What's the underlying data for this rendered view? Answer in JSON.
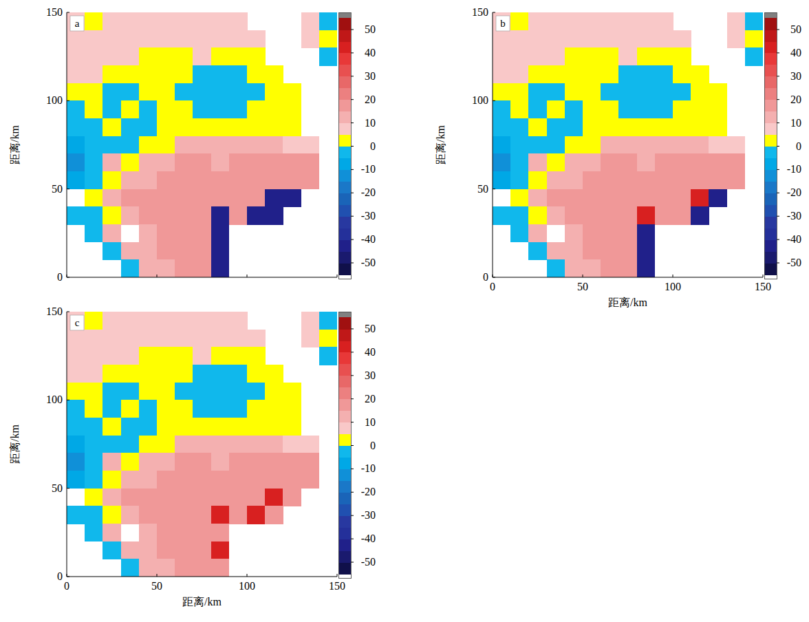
{
  "chart_data": [
    {
      "type": "heatmap",
      "label": "a",
      "y_label": "距离/km",
      "x": [
        5,
        15,
        25,
        35,
        45,
        55,
        65,
        75,
        85,
        95,
        105,
        115,
        125,
        135,
        145
      ],
      "y": [
        145,
        135,
        125,
        115,
        105,
        95,
        85,
        75,
        65,
        55,
        45,
        35,
        25,
        15,
        5
      ],
      "values": [
        [
          8,
          2,
          8,
          8,
          8,
          8,
          8,
          8,
          8,
          8,
          null,
          null,
          null,
          8,
          -5
        ],
        [
          8,
          8,
          8,
          8,
          8,
          8,
          8,
          8,
          8,
          8,
          8,
          null,
          null,
          8,
          2
        ],
        [
          8,
          8,
          8,
          8,
          2,
          2,
          2,
          8,
          2,
          2,
          2,
          null,
          null,
          null,
          -5
        ],
        [
          8,
          8,
          2,
          2,
          2,
          2,
          2,
          -5,
          -5,
          -5,
          2,
          2,
          null,
          null,
          null
        ],
        [
          2,
          2,
          -5,
          -5,
          2,
          2,
          -5,
          -5,
          -5,
          -5,
          -5,
          2,
          2,
          null,
          null
        ],
        [
          -5,
          2,
          -5,
          2,
          -5,
          2,
          2,
          -5,
          -5,
          -5,
          2,
          2,
          2,
          null,
          null
        ],
        [
          -5,
          -5,
          2,
          -5,
          -5,
          2,
          2,
          2,
          2,
          2,
          2,
          2,
          2,
          null,
          null
        ],
        [
          -10,
          -5,
          -5,
          -5,
          2,
          2,
          12,
          12,
          12,
          12,
          12,
          12,
          8,
          8,
          null
        ],
        [
          -15,
          -5,
          12,
          2,
          12,
          12,
          15,
          15,
          12,
          15,
          15,
          15,
          15,
          15,
          null
        ],
        [
          -10,
          -5,
          2,
          12,
          12,
          15,
          15,
          15,
          15,
          15,
          15,
          15,
          15,
          15,
          null
        ],
        [
          null,
          2,
          12,
          15,
          15,
          15,
          15,
          15,
          15,
          15,
          15,
          -45,
          -45,
          null,
          null
        ],
        [
          -5,
          -5,
          2,
          12,
          15,
          15,
          15,
          15,
          -45,
          15,
          -45,
          -45,
          null,
          null,
          null
        ],
        [
          null,
          -5,
          12,
          null,
          12,
          15,
          15,
          15,
          -45,
          null,
          null,
          null,
          null,
          null,
          null
        ],
        [
          null,
          null,
          -5,
          12,
          12,
          15,
          15,
          15,
          -45,
          null,
          null,
          null,
          null,
          null,
          null
        ],
        [
          null,
          null,
          null,
          -5,
          12,
          12,
          15,
          15,
          -45,
          null,
          null,
          null,
          null,
          null,
          null
        ]
      ],
      "xlim": [
        0,
        150
      ],
      "ylim": [
        0,
        150
      ],
      "xticks": [
        0,
        50,
        100,
        150
      ],
      "yticks": [
        0,
        50,
        100,
        150
      ],
      "tick_labels": "y",
      "colorbar": {
        "range": [
          -55,
          55
        ],
        "ticks": [
          -50,
          -40,
          -30,
          -20,
          -10,
          0,
          10,
          20,
          30,
          40,
          50
        ]
      }
    },
    {
      "type": "heatmap",
      "label": "b",
      "x_label": "距离/km",
      "y_label": "距离/km",
      "x": [
        5,
        15,
        25,
        35,
        45,
        55,
        65,
        75,
        85,
        95,
        105,
        115,
        125,
        135,
        145
      ],
      "y": [
        145,
        135,
        125,
        115,
        105,
        95,
        85,
        75,
        65,
        55,
        45,
        35,
        25,
        15,
        5
      ],
      "values": [
        [
          8,
          2,
          8,
          8,
          8,
          8,
          8,
          8,
          8,
          8,
          null,
          null,
          null,
          8,
          -5
        ],
        [
          8,
          8,
          8,
          8,
          8,
          8,
          8,
          8,
          8,
          8,
          8,
          null,
          null,
          8,
          2
        ],
        [
          8,
          8,
          8,
          8,
          2,
          2,
          2,
          8,
          2,
          2,
          2,
          null,
          null,
          null,
          -5
        ],
        [
          8,
          8,
          2,
          2,
          2,
          2,
          2,
          -5,
          -5,
          -5,
          2,
          2,
          null,
          null,
          null
        ],
        [
          2,
          2,
          -5,
          -5,
          2,
          2,
          -5,
          -5,
          -5,
          -5,
          -5,
          2,
          2,
          null,
          null
        ],
        [
          -5,
          2,
          -5,
          2,
          -5,
          2,
          2,
          -5,
          -5,
          -5,
          2,
          2,
          2,
          null,
          null
        ],
        [
          -5,
          -5,
          2,
          -5,
          -5,
          2,
          2,
          2,
          2,
          2,
          2,
          2,
          2,
          null,
          null
        ],
        [
          -10,
          -5,
          -5,
          -5,
          2,
          2,
          12,
          12,
          12,
          12,
          12,
          12,
          8,
          8,
          null
        ],
        [
          -15,
          -5,
          12,
          2,
          12,
          12,
          15,
          15,
          12,
          15,
          15,
          15,
          15,
          15,
          null
        ],
        [
          -10,
          -5,
          2,
          12,
          12,
          15,
          15,
          15,
          15,
          15,
          15,
          15,
          15,
          15,
          null
        ],
        [
          null,
          2,
          12,
          15,
          15,
          15,
          15,
          15,
          15,
          15,
          15,
          40,
          -45,
          null,
          null
        ],
        [
          -5,
          -5,
          2,
          12,
          15,
          15,
          15,
          15,
          40,
          15,
          20,
          -45,
          null,
          null,
          null
        ],
        [
          null,
          -5,
          12,
          null,
          12,
          15,
          15,
          15,
          -45,
          null,
          null,
          null,
          null,
          null,
          null
        ],
        [
          null,
          null,
          -5,
          12,
          12,
          15,
          15,
          15,
          -45,
          null,
          null,
          null,
          null,
          null,
          null
        ],
        [
          null,
          null,
          null,
          -5,
          12,
          12,
          15,
          15,
          -45,
          null,
          null,
          null,
          null,
          null,
          null
        ]
      ],
      "xlim": [
        0,
        150
      ],
      "ylim": [
        0,
        150
      ],
      "xticks": [
        0,
        50,
        100,
        150
      ],
      "yticks": [
        0,
        50,
        100,
        150
      ],
      "tick_labels": true,
      "colorbar": {
        "range": [
          -55,
          55
        ],
        "ticks": [
          -50,
          -40,
          -30,
          -20,
          -10,
          0,
          10,
          20,
          30,
          40,
          50
        ]
      }
    },
    {
      "type": "heatmap",
      "label": "c",
      "x_label": "距离/km",
      "y_label": "距离/km",
      "x": [
        5,
        15,
        25,
        35,
        45,
        55,
        65,
        75,
        85,
        95,
        105,
        115,
        125,
        135,
        145
      ],
      "y": [
        145,
        135,
        125,
        115,
        105,
        95,
        85,
        75,
        65,
        55,
        45,
        35,
        25,
        15,
        5
      ],
      "values": [
        [
          8,
          2,
          8,
          8,
          8,
          8,
          8,
          8,
          8,
          8,
          null,
          null,
          null,
          8,
          -5
        ],
        [
          8,
          8,
          8,
          8,
          8,
          8,
          8,
          8,
          8,
          8,
          8,
          null,
          null,
          8,
          2
        ],
        [
          8,
          8,
          8,
          8,
          2,
          2,
          2,
          8,
          2,
          2,
          2,
          null,
          null,
          null,
          -5
        ],
        [
          8,
          8,
          2,
          2,
          2,
          2,
          2,
          -5,
          -5,
          -5,
          2,
          2,
          null,
          null,
          null
        ],
        [
          2,
          2,
          -5,
          -5,
          2,
          2,
          -5,
          -5,
          -5,
          -5,
          -5,
          2,
          2,
          null,
          null
        ],
        [
          -5,
          2,
          -5,
          2,
          -5,
          2,
          2,
          -5,
          -5,
          -5,
          2,
          2,
          2,
          null,
          null
        ],
        [
          -5,
          -5,
          2,
          -5,
          -5,
          2,
          2,
          2,
          2,
          2,
          2,
          2,
          2,
          null,
          null
        ],
        [
          -10,
          -5,
          -5,
          -5,
          2,
          2,
          12,
          12,
          12,
          12,
          12,
          12,
          8,
          8,
          null
        ],
        [
          -15,
          -5,
          12,
          2,
          12,
          12,
          15,
          15,
          12,
          15,
          15,
          15,
          15,
          15,
          null
        ],
        [
          -10,
          -5,
          2,
          12,
          12,
          15,
          15,
          15,
          15,
          15,
          15,
          15,
          15,
          15,
          null
        ],
        [
          null,
          2,
          12,
          15,
          15,
          15,
          15,
          15,
          15,
          15,
          15,
          40,
          20,
          null,
          null
        ],
        [
          -5,
          -5,
          2,
          12,
          15,
          15,
          15,
          15,
          40,
          15,
          40,
          20,
          null,
          null,
          null
        ],
        [
          null,
          -5,
          12,
          null,
          12,
          15,
          15,
          15,
          20,
          null,
          null,
          null,
          null,
          null,
          null
        ],
        [
          null,
          null,
          -5,
          12,
          12,
          15,
          15,
          15,
          40,
          null,
          null,
          null,
          null,
          null,
          null
        ],
        [
          null,
          null,
          null,
          -5,
          12,
          12,
          15,
          15,
          20,
          null,
          null,
          null,
          null,
          null,
          null
        ]
      ],
      "xlim": [
        0,
        150
      ],
      "ylim": [
        0,
        150
      ],
      "xticks": [
        0,
        50,
        100,
        150
      ],
      "yticks": [
        0,
        50,
        100,
        150
      ],
      "tick_labels": true,
      "colorbar": {
        "range": [
          -55,
          55
        ],
        "ticks": [
          -50,
          -40,
          -30,
          -20,
          -10,
          0,
          10,
          20,
          30,
          40,
          50
        ]
      }
    }
  ]
}
